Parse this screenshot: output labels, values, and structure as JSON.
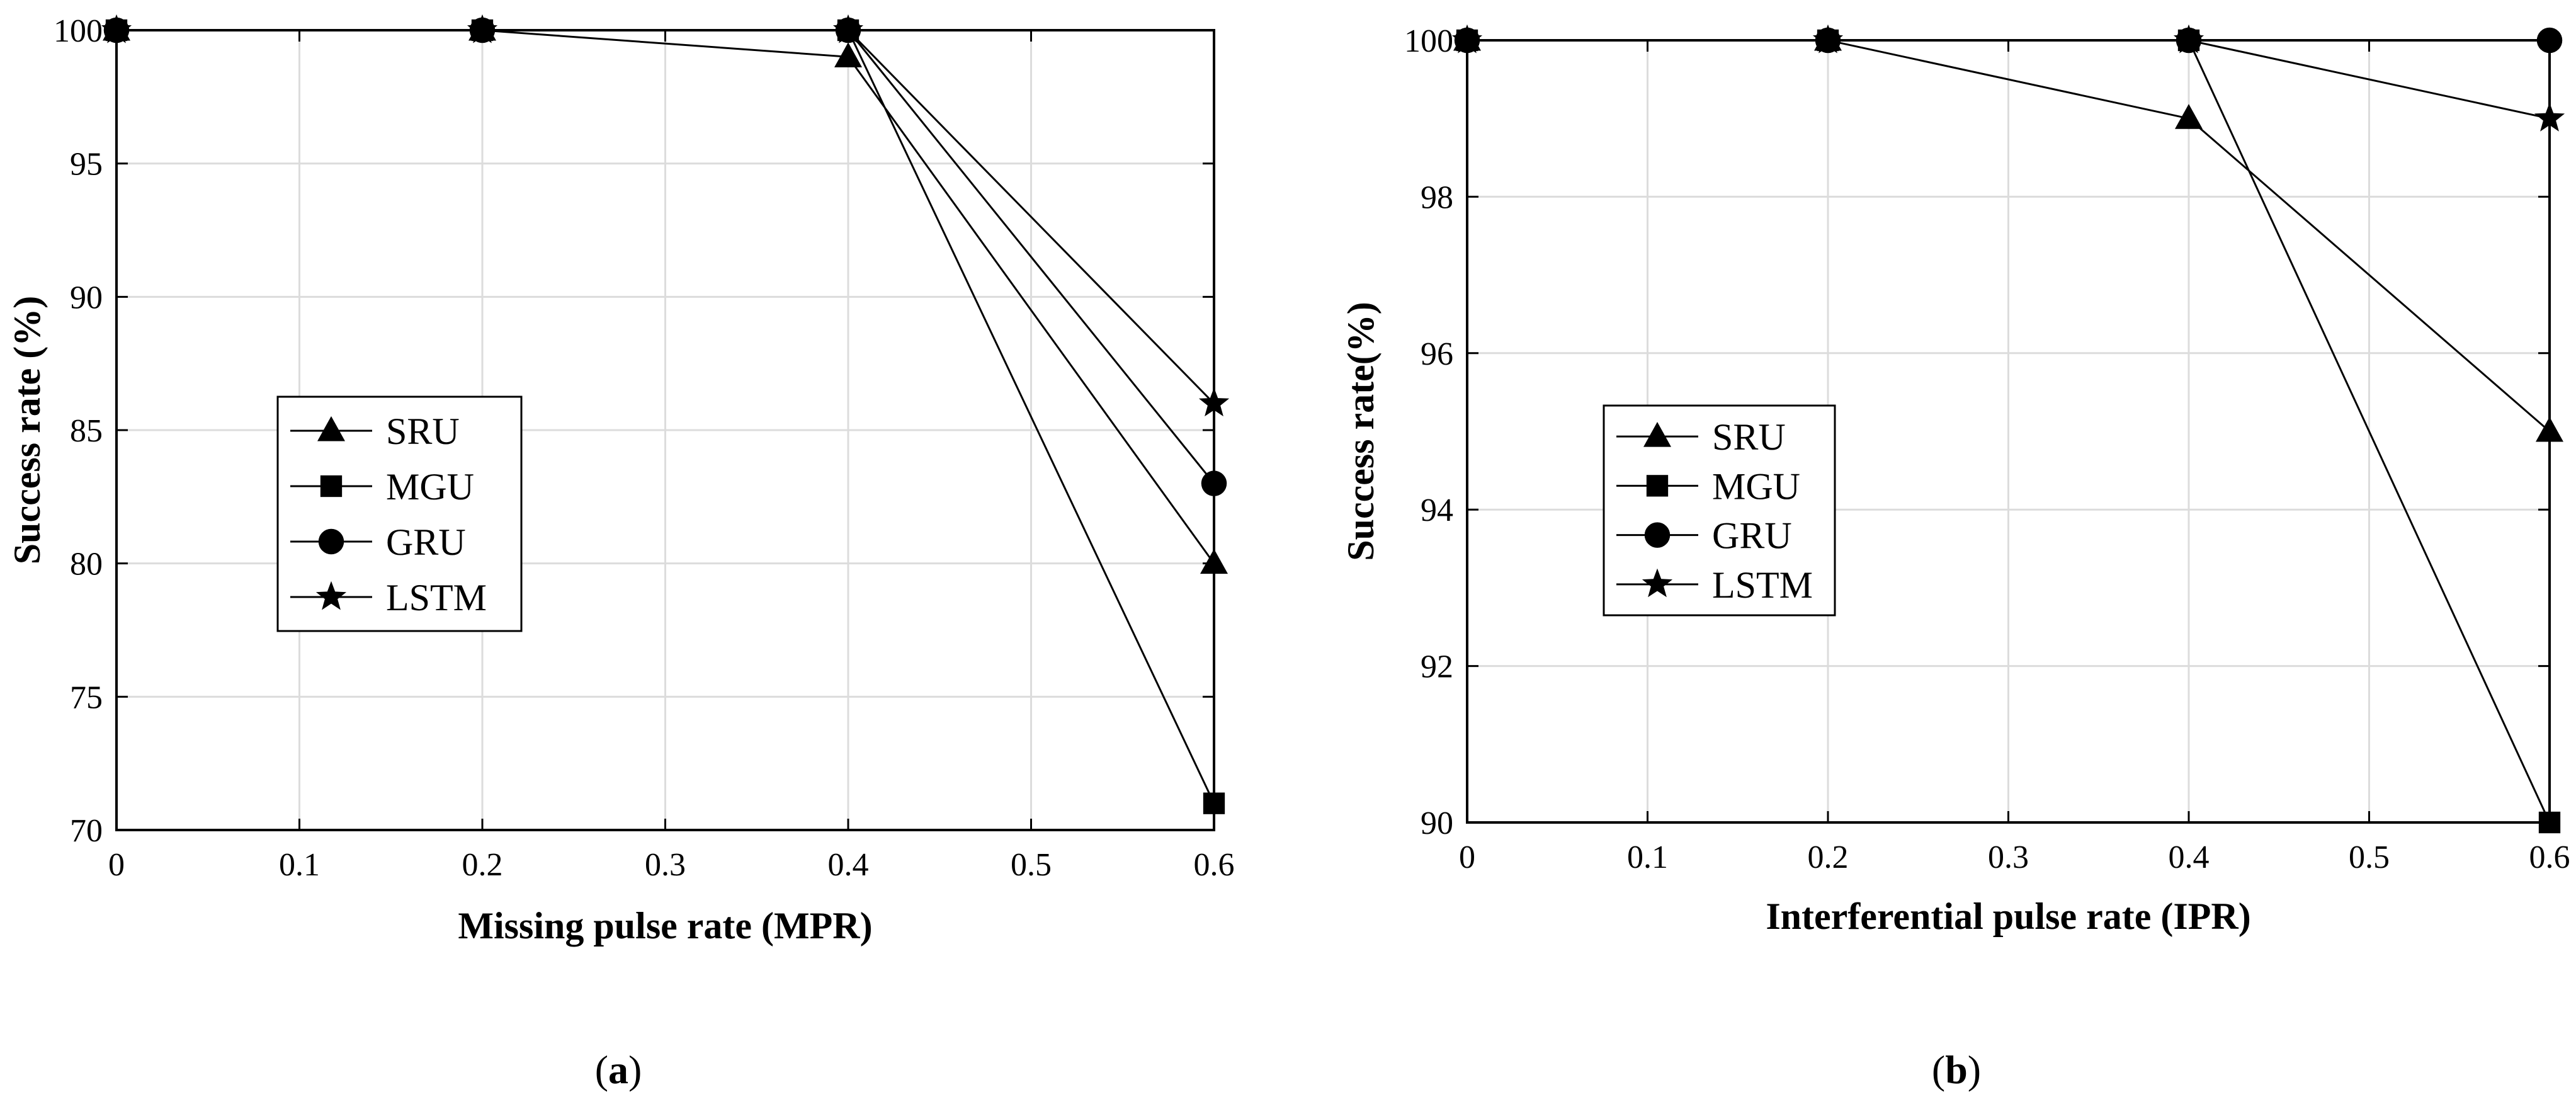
{
  "chart_data": [
    {
      "type": "line",
      "panel": "a",
      "caption": "(a)",
      "x": [
        0,
        0.2,
        0.4,
        0.6
      ],
      "xlim": [
        0,
        0.6
      ],
      "ylim": [
        70,
        100
      ],
      "xticks": [
        "0",
        "0.1",
        "0.2",
        "0.3",
        "0.4",
        "0.5",
        "0.6"
      ],
      "yticks": [
        "70",
        "75",
        "80",
        "85",
        "90",
        "95",
        "100"
      ],
      "xlabel": "Missing pulse rate (MPR)",
      "ylabel": "Success rate (%)",
      "grid": true,
      "legend_position": "middle-left",
      "series": [
        {
          "name": "SRU",
          "marker": "triangle",
          "values": [
            100,
            100,
            99,
            80
          ]
        },
        {
          "name": "MGU",
          "marker": "square",
          "values": [
            100,
            100,
            100,
            71
          ]
        },
        {
          "name": "GRU",
          "marker": "circle",
          "values": [
            100,
            100,
            100,
            83
          ]
        },
        {
          "name": "LSTM",
          "marker": "star",
          "values": [
            100,
            100,
            100,
            86
          ]
        }
      ]
    },
    {
      "type": "line",
      "panel": "b",
      "caption": "(b)",
      "x": [
        0,
        0.2,
        0.4,
        0.6
      ],
      "xlim": [
        0,
        0.6
      ],
      "ylim": [
        90,
        100
      ],
      "xticks": [
        "0",
        "0.1",
        "0.2",
        "0.3",
        "0.4",
        "0.5",
        "0.6"
      ],
      "yticks": [
        "90",
        "92",
        "94",
        "96",
        "98",
        "100"
      ],
      "xlabel": "Interferential pulse rate (IPR)",
      "ylabel": "Success rate(%)",
      "grid": true,
      "legend_position": "middle-left",
      "series": [
        {
          "name": "SRU",
          "marker": "triangle",
          "values": [
            100,
            100,
            99,
            95
          ]
        },
        {
          "name": "MGU",
          "marker": "square",
          "values": [
            100,
            100,
            100,
            90
          ]
        },
        {
          "name": "GRU",
          "marker": "circle",
          "values": [
            100,
            100,
            100,
            100
          ]
        },
        {
          "name": "LSTM",
          "marker": "star",
          "values": [
            100,
            100,
            100,
            99
          ]
        }
      ]
    }
  ]
}
